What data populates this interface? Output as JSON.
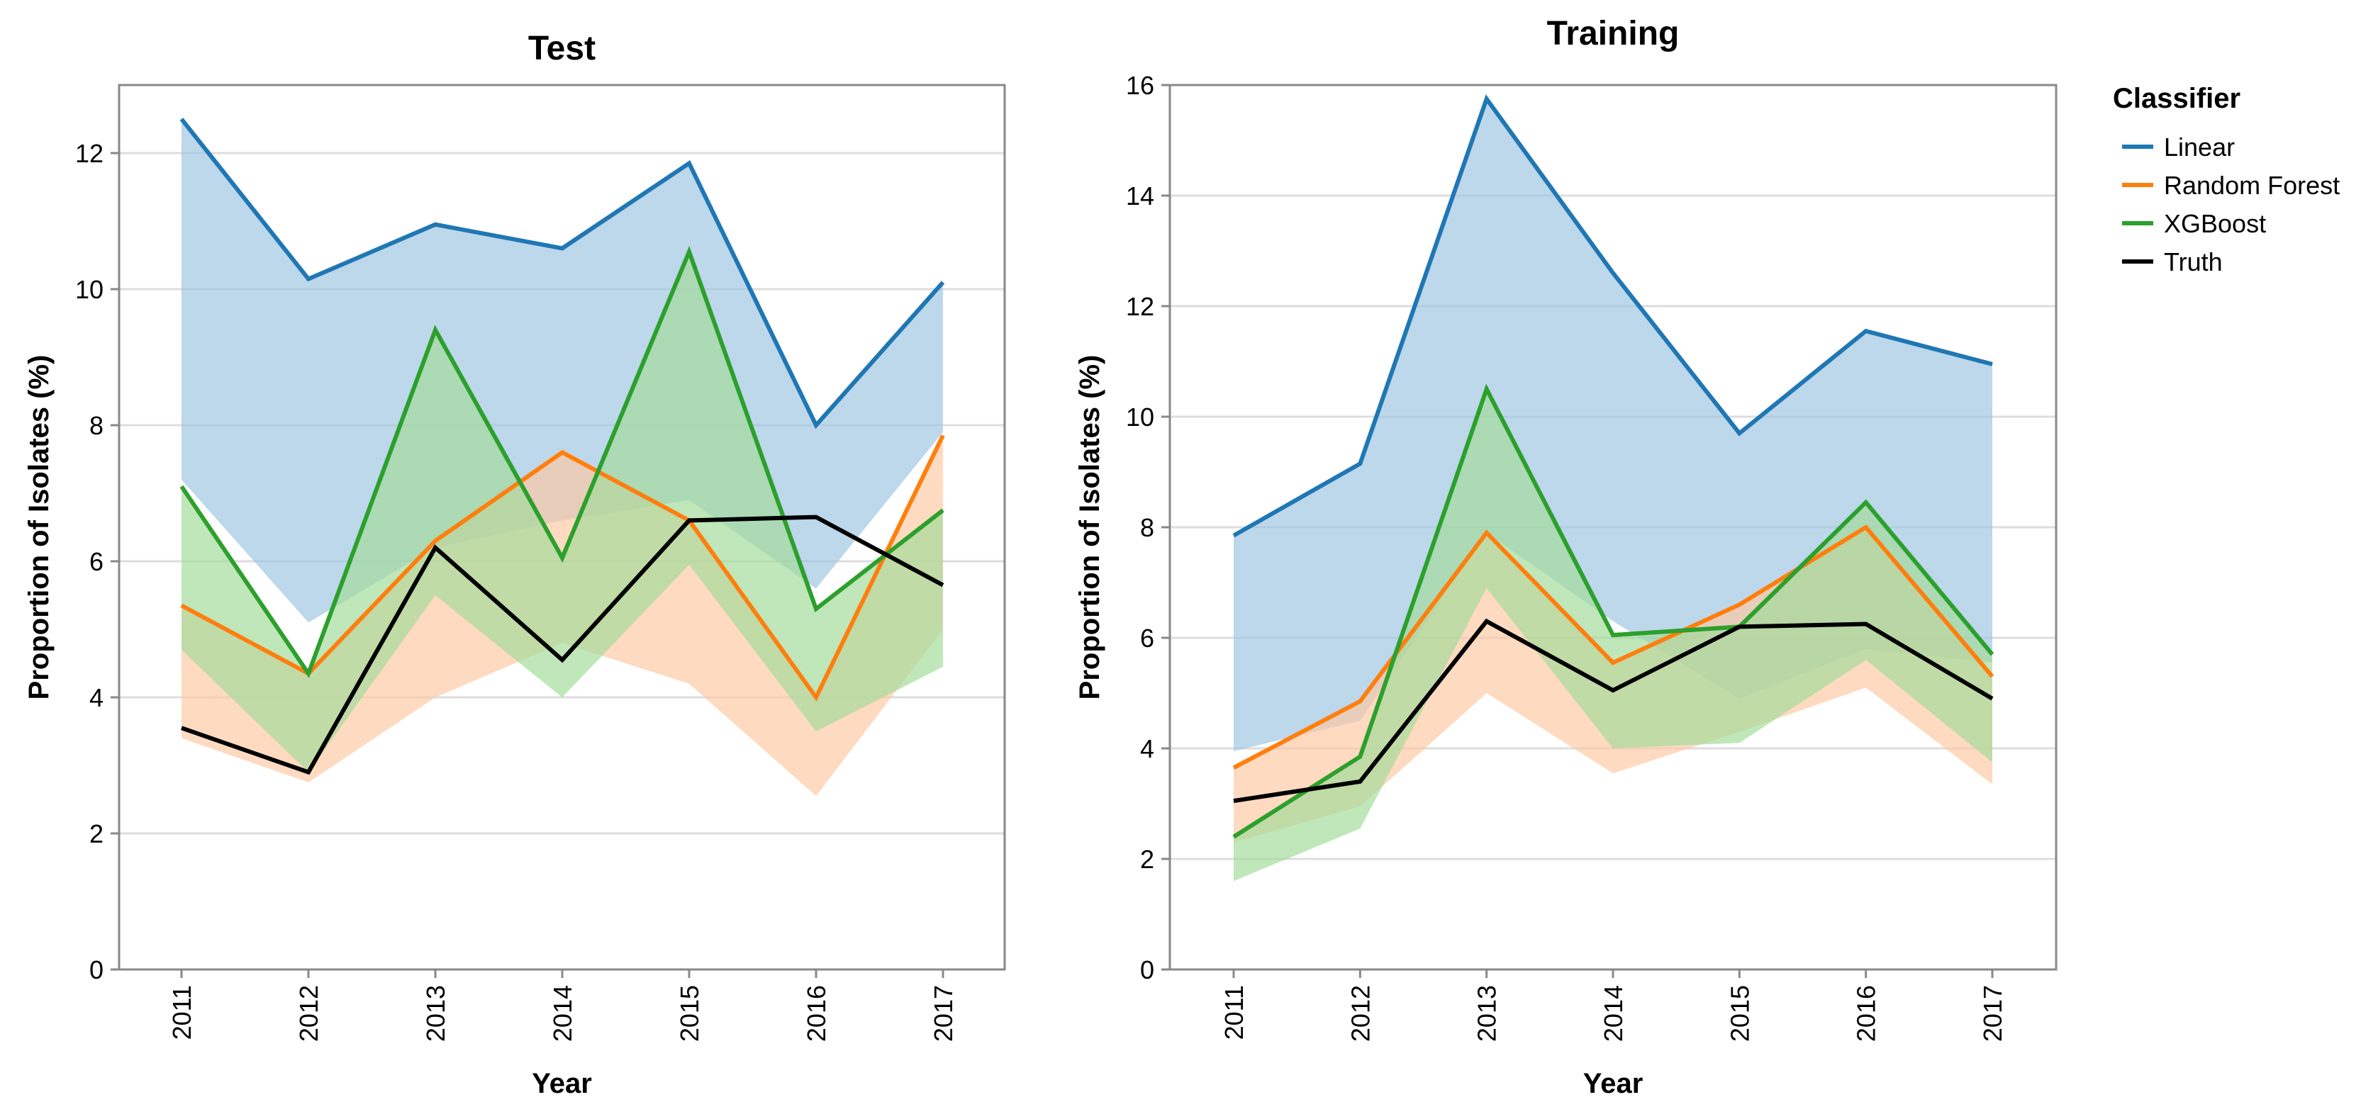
{
  "chart_data": [
    {
      "type": "line",
      "title": "Test",
      "xlabel": "Year",
      "ylabel": "Proportion of Isolates (%)",
      "x": [
        "2011",
        "2012",
        "2013",
        "2014",
        "2015",
        "2016",
        "2017"
      ],
      "ylim": [
        0,
        13
      ],
      "yticks": [
        "0",
        "2",
        "4",
        "6",
        "8",
        "10",
        "12"
      ],
      "grid": true,
      "series": [
        {
          "name": "Linear",
          "values": [
            12.5,
            10.15,
            10.95,
            10.6,
            11.85,
            8.0,
            10.1
          ],
          "band_low": [
            7.2,
            5.1,
            6.2,
            6.6,
            6.9,
            5.6,
            7.9
          ],
          "band_high": [
            12.5,
            10.15,
            10.95,
            10.6,
            11.85,
            8.0,
            10.1
          ]
        },
        {
          "name": "Random Forest",
          "values": [
            5.35,
            4.35,
            6.3,
            7.6,
            6.6,
            4.0,
            7.85
          ],
          "band_low": [
            3.4,
            2.75,
            4.0,
            4.8,
            4.2,
            2.55,
            5.0
          ],
          "band_high": [
            5.35,
            4.35,
            6.3,
            7.65,
            6.6,
            4.0,
            7.85
          ]
        },
        {
          "name": "XGBoost",
          "values": [
            7.1,
            4.35,
            9.4,
            6.05,
            10.55,
            5.3,
            6.75
          ],
          "band_low": [
            4.7,
            2.9,
            5.5,
            4.0,
            5.95,
            3.5,
            4.45
          ],
          "band_high": [
            7.1,
            4.35,
            9.4,
            6.05,
            10.55,
            5.3,
            6.75
          ]
        },
        {
          "name": "Truth",
          "values": [
            3.55,
            2.9,
            6.2,
            4.55,
            6.6,
            6.65,
            5.65
          ]
        }
      ]
    },
    {
      "type": "line",
      "title": "Training",
      "xlabel": "Year",
      "ylabel": "Proportion of Isolates (%)",
      "x": [
        "2011",
        "2012",
        "2013",
        "2014",
        "2015",
        "2016",
        "2017"
      ],
      "ylim": [
        0,
        16
      ],
      "yticks": [
        "0",
        "2",
        "4",
        "6",
        "8",
        "10",
        "12",
        "14",
        "16"
      ],
      "grid": true,
      "series": [
        {
          "name": "Linear",
          "values": [
            7.85,
            9.15,
            15.75,
            12.6,
            9.7,
            11.55,
            10.95
          ],
          "band_low": [
            3.95,
            4.5,
            7.9,
            6.3,
            4.9,
            5.8,
            5.55
          ],
          "band_high": [
            7.85,
            9.15,
            15.75,
            12.6,
            9.7,
            11.55,
            10.95
          ]
        },
        {
          "name": "Random Forest",
          "values": [
            3.65,
            4.85,
            7.9,
            5.55,
            6.6,
            8.0,
            5.3
          ],
          "band_low": [
            2.3,
            2.95,
            5.0,
            3.55,
            4.3,
            5.1,
            3.35
          ],
          "band_high": [
            3.65,
            4.85,
            7.9,
            5.55,
            6.6,
            8.0,
            5.3
          ]
        },
        {
          "name": "XGBoost",
          "values": [
            2.4,
            3.85,
            10.5,
            6.05,
            6.2,
            8.45,
            5.7
          ],
          "band_low": [
            1.6,
            2.55,
            6.9,
            4.0,
            4.1,
            5.6,
            3.75
          ],
          "band_high": [
            2.4,
            3.85,
            10.5,
            6.05,
            6.2,
            8.45,
            5.7
          ]
        },
        {
          "name": "Truth",
          "values": [
            3.05,
            3.4,
            6.3,
            5.05,
            6.2,
            6.25,
            4.9
          ]
        }
      ]
    }
  ],
  "legend": {
    "title": "Classifier",
    "placement": "top-right",
    "items": [
      {
        "label": "Linear",
        "color": "#1f77b4"
      },
      {
        "label": "Random Forest",
        "color": "#ff7f0e"
      },
      {
        "label": "XGBoost",
        "color": "#2ca02c"
      },
      {
        "label": "Truth",
        "color": "#000000"
      }
    ]
  },
  "colors": {
    "Linear": "#1f77b4",
    "Random Forest": "#ff7f0e",
    "XGBoost": "#2ca02c",
    "Truth": "#000000",
    "Linear_band": "#9ec4e2",
    "Random Forest_band": "#fdc9a3",
    "XGBoost_band": "#a2dc9a"
  }
}
